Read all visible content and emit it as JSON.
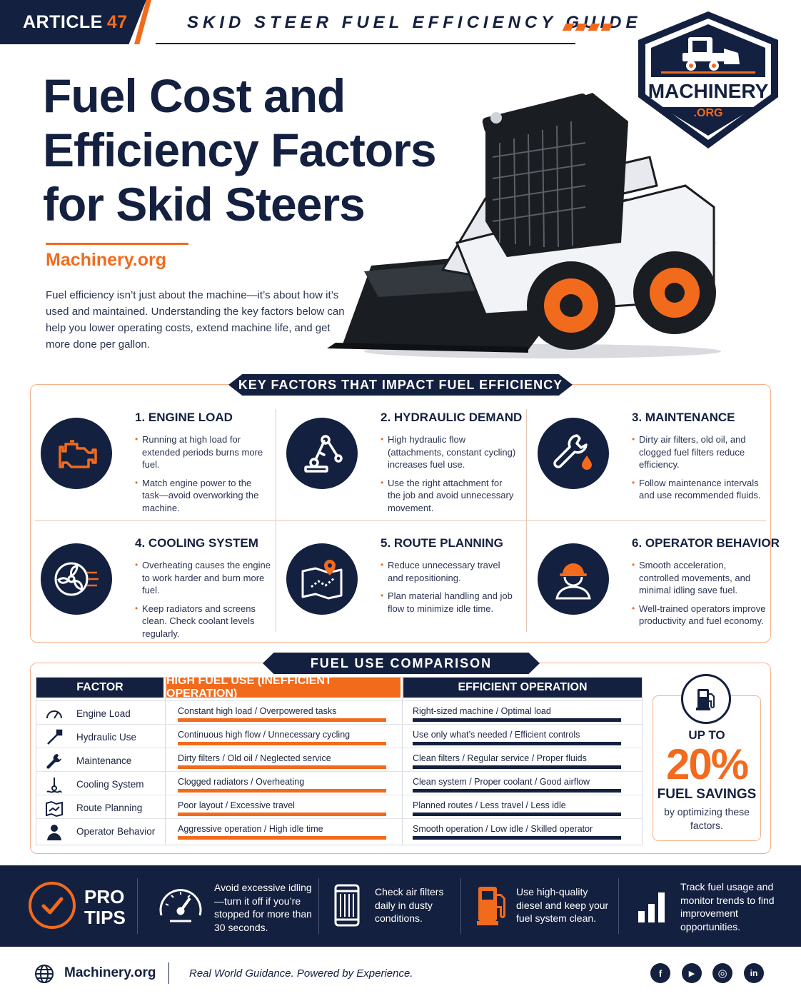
{
  "header": {
    "article_label": "ARTICLE",
    "article_number": "47",
    "guide_title": "SKID STEER FUEL EFFICIENCY GUIDE"
  },
  "logo": {
    "name": "MACHINERY",
    "suffix": ".ORG"
  },
  "hero": {
    "title_line1": "Fuel Cost and",
    "title_line2": "Efficiency Factors",
    "title_line3": "for Skid Steers",
    "site": "Machinery.org",
    "intro": "Fuel efficiency isn’t just about the machine—it’s about how it’s used and maintained. Understanding the key factors below can help you lower operating costs, extend machine life, and get more done per gallon."
  },
  "factors_section": {
    "heading": "KEY FACTORS THAT IMPACT FUEL EFFICIENCY",
    "items": [
      {
        "title": "1. ENGINE LOAD",
        "icon": "engine-icon",
        "points": [
          "Running at high load for extended periods burns more fuel.",
          "Match engine power to the task—avoid overworking the machine."
        ]
      },
      {
        "title": "2. HYDRAULIC DEMAND",
        "icon": "hydraulic-arm-icon",
        "points": [
          "High hydraulic flow (attachments, constant cycling) increases fuel use.",
          "Use the right attachment for the job and avoid unnecessary movement."
        ]
      },
      {
        "title": "3. MAINTENANCE",
        "icon": "wrench-drop-icon",
        "points": [
          "Dirty air filters, old oil, and clogged fuel filters reduce efficiency.",
          "Follow maintenance intervals and use recommended fluids."
        ]
      },
      {
        "title": "4. COOLING SYSTEM",
        "icon": "fan-icon",
        "points": [
          "Overheating causes the engine to work harder and burn more fuel.",
          "Keep radiators and screens clean. Check coolant levels regularly."
        ]
      },
      {
        "title": "5. ROUTE PLANNING",
        "icon": "map-route-icon",
        "points": [
          "Reduce unnecessary travel and repositioning.",
          "Plan material handling and job flow to minimize idle time."
        ]
      },
      {
        "title": "6. OPERATOR BEHAVIOR",
        "icon": "operator-icon",
        "points": [
          "Smooth acceleration, controlled movements, and minimal idling save fuel.",
          "Well-trained operators improve productivity and fuel economy."
        ]
      }
    ]
  },
  "comparison": {
    "heading": "FUEL USE COMPARISON",
    "col_factor": "FACTOR",
    "col_high": "HIGH FUEL USE (INEFFICIENT OPERATION)",
    "col_efficient": "EFFICIENT OPERATION",
    "rows": [
      {
        "factor": "Engine Load",
        "icon": "gauge-icon",
        "high": "Constant high load / Overpowered tasks",
        "efficient": "Right-sized machine / Optimal load"
      },
      {
        "factor": "Hydraulic Use",
        "icon": "hydraulic-icon",
        "high": "Continuous high flow / Unnecessary cycling",
        "efficient": "Use only what’s needed / Efficient controls"
      },
      {
        "factor": "Maintenance",
        "icon": "wrench-icon",
        "high": "Dirty filters / Old oil / Neglected service",
        "efficient": "Clean filters / Regular service / Proper fluids"
      },
      {
        "factor": "Cooling System",
        "icon": "coolant-icon",
        "high": "Clogged radiators / Overheating",
        "efficient": "Clean system / Proper coolant / Good airflow"
      },
      {
        "factor": "Route Planning",
        "icon": "route-icon",
        "high": "Poor layout / Excessive travel",
        "efficient": "Planned routes / Less travel / Less idle"
      },
      {
        "factor": "Operator Behavior",
        "icon": "person-icon",
        "high": "Aggressive operation / High idle time",
        "efficient": "Smooth operation / Low idle / Skilled operator"
      }
    ],
    "savings": {
      "up_to": "UP TO",
      "percent": "20%",
      "label": "FUEL SAVINGS",
      "sub": "by optimizing these factors."
    }
  },
  "pro_tips": {
    "title_line1": "PRO",
    "title_line2": "TIPS",
    "tips": [
      {
        "icon": "speedometer-icon",
        "text": "Avoid excessive idling—turn it off if you’re stopped for more than 30 seconds."
      },
      {
        "icon": "air-filter-icon",
        "text": "Check air filters daily in dusty conditions."
      },
      {
        "icon": "fuel-pump-icon",
        "text": "Use high-quality diesel and keep your fuel system clean."
      },
      {
        "icon": "bar-chart-icon",
        "text": "Track fuel usage and monitor trends to find improvement opportunities."
      }
    ]
  },
  "footer": {
    "site": "Machinery.org",
    "tagline": "Real World Guidance. Powered by Experience.",
    "social": [
      {
        "icon": "facebook-icon",
        "glyph": "f"
      },
      {
        "icon": "youtube-icon",
        "glyph": "▶"
      },
      {
        "icon": "instagram-icon",
        "glyph": "◎"
      },
      {
        "icon": "linkedin-icon",
        "glyph": "in"
      }
    ]
  },
  "colors": {
    "navy": "#14203f",
    "orange": "#f26b1d"
  }
}
